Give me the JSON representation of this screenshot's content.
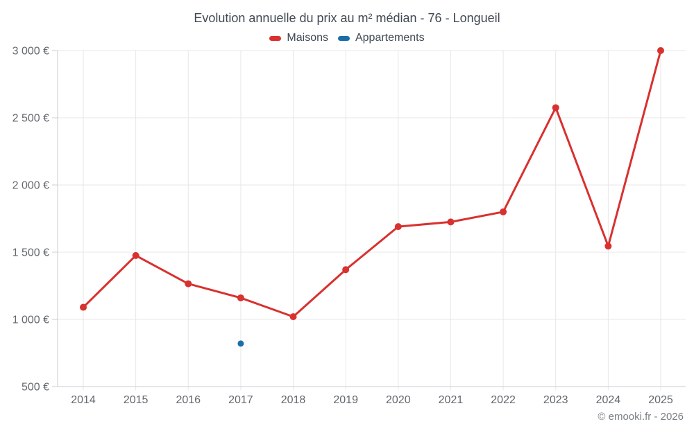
{
  "title": "Evolution annuelle du prix au m² médian - 76 - Longueil",
  "legend": {
    "items": [
      {
        "label": "Maisons",
        "color": "#d8312f"
      },
      {
        "label": "Appartements",
        "color": "#1b6fa8"
      }
    ]
  },
  "footer": "© emooki.fr - 2026",
  "chart_data": {
    "type": "line",
    "title": "Evolution annuelle du prix au m² médian - 76 - Longueil",
    "x": [
      2014,
      2015,
      2016,
      2017,
      2018,
      2019,
      2020,
      2021,
      2022,
      2023,
      2024,
      2025
    ],
    "series": [
      {
        "name": "Maisons",
        "color": "#d8312f",
        "marker_radius": 5,
        "values": [
          1090,
          1475,
          1265,
          1160,
          1020,
          1370,
          1690,
          1725,
          1800,
          2575,
          1545,
          3000
        ]
      },
      {
        "name": "Appartements",
        "color": "#1b6fa8",
        "marker_radius": 4.5,
        "values": [
          null,
          null,
          null,
          820,
          null,
          null,
          null,
          null,
          null,
          null,
          null,
          null
        ]
      }
    ],
    "ylim": [
      500,
      3000
    ],
    "ytick_step": 500,
    "ytick_labels": [
      "500 €",
      "1 000 €",
      "1 500 €",
      "2 000 €",
      "2 500 €",
      "3 000 €"
    ],
    "currency_suffix": "€",
    "grid": true,
    "legend_position": "top",
    "colors": {
      "grid": "#e7e7e7",
      "axis": "#c9cdd2",
      "tick_label": "#63686e"
    }
  }
}
